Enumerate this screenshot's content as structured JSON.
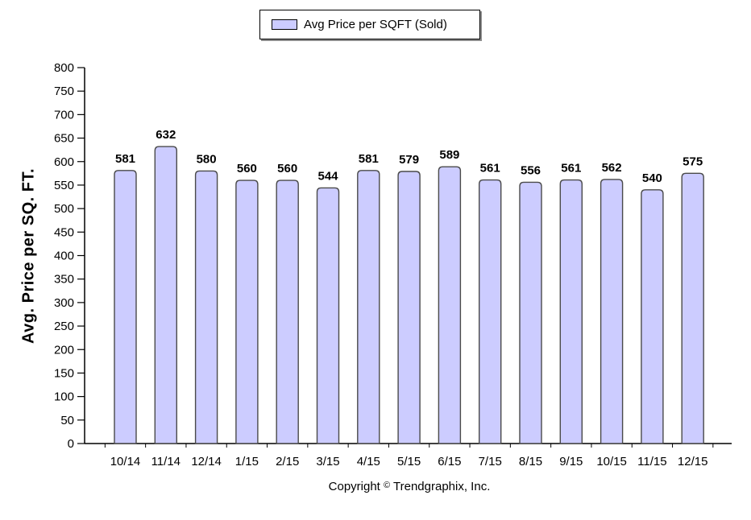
{
  "chart_data": {
    "type": "bar",
    "categories": [
      "10/14",
      "11/14",
      "12/14",
      "1/15",
      "2/15",
      "3/15",
      "4/15",
      "5/15",
      "6/15",
      "7/15",
      "8/15",
      "9/15",
      "10/15",
      "11/15",
      "12/15"
    ],
    "series": [
      {
        "name": "Avg Price per SQFT (Sold)",
        "values": [
          581,
          632,
          580,
          560,
          560,
          544,
          581,
          579,
          589,
          561,
          556,
          561,
          562,
          540,
          575
        ]
      }
    ],
    "ylabel": "Avg. Price per SQ. FT.",
    "xlabel": "",
    "ylim": [
      0,
      800
    ],
    "yticks": [
      0,
      50,
      100,
      150,
      200,
      250,
      300,
      350,
      400,
      450,
      500,
      550,
      600,
      650,
      700,
      750,
      800
    ],
    "grid": false,
    "legend_position": "top-center",
    "data_labels": true
  },
  "colors": {
    "bar_fill": "#ccccff",
    "bar_stroke": "#4a4a4a"
  },
  "legend": {
    "label": "Avg Price per SQFT (Sold)"
  },
  "axis": {
    "ylabel": "Avg. Price per SQ. FT."
  },
  "footer": {
    "copyright_prefix": "Copyright ",
    "copyright_symbol": "©",
    "copyright_suffix": " Trendgraphix, Inc."
  }
}
